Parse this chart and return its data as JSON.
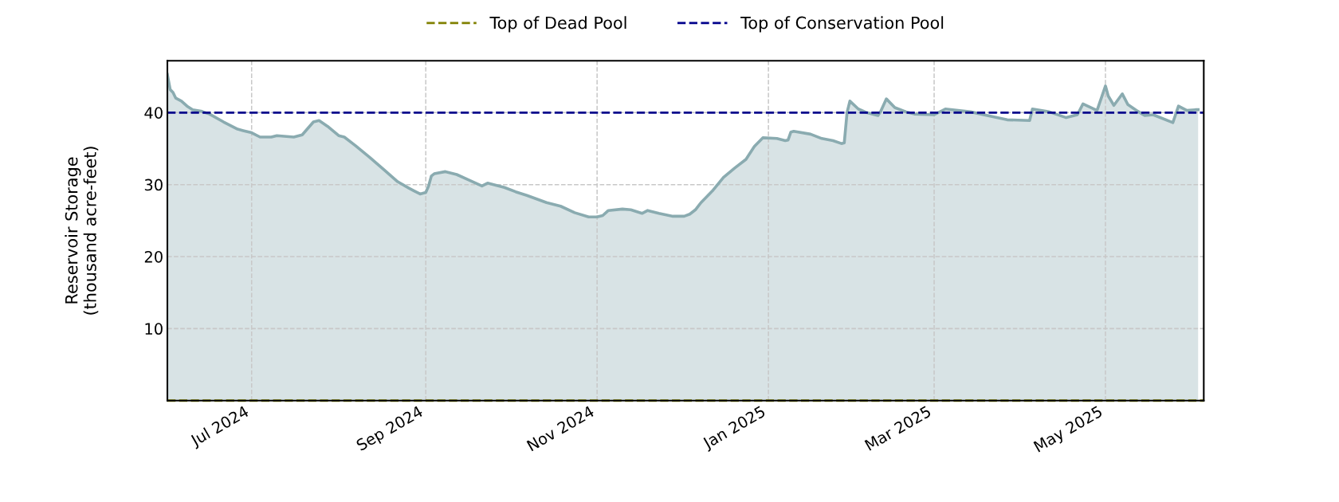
{
  "chart_data": {
    "type": "area",
    "ylabel": "Reservoir Storage\n(thousand acre-feet)",
    "x": [
      "2024-06-01",
      "2024-06-02",
      "2024-06-03",
      "2024-06-04",
      "2024-06-06",
      "2024-06-08",
      "2024-06-10",
      "2024-06-13",
      "2024-06-16",
      "2024-06-21",
      "2024-06-26",
      "2024-06-28",
      "2024-07-01",
      "2024-07-04",
      "2024-07-08",
      "2024-07-10",
      "2024-07-16",
      "2024-07-19",
      "2024-07-23",
      "2024-07-25",
      "2024-07-28",
      "2024-08-01",
      "2024-08-03",
      "2024-08-07",
      "2024-08-12",
      "2024-08-17",
      "2024-08-22",
      "2024-08-26",
      "2024-08-28",
      "2024-08-30",
      "2024-09-01",
      "2024-09-02",
      "2024-09-03",
      "2024-09-04",
      "2024-09-08",
      "2024-09-12",
      "2024-09-16",
      "2024-09-21",
      "2024-09-23",
      "2024-09-29",
      "2024-10-03",
      "2024-10-07",
      "2024-10-14",
      "2024-10-19",
      "2024-10-24",
      "2024-10-29",
      "2024-11-01",
      "2024-11-03",
      "2024-11-05",
      "2024-11-10",
      "2024-11-13",
      "2024-11-17",
      "2024-11-19",
      "2024-11-23",
      "2024-11-28",
      "2024-12-02",
      "2024-12-04",
      "2024-12-06",
      "2024-12-08",
      "2024-12-12",
      "2024-12-16",
      "2024-12-20",
      "2024-12-24",
      "2024-12-27",
      "2024-12-30",
      "2025-01-04",
      "2025-01-07",
      "2025-01-08",
      "2025-01-09",
      "2025-01-10",
      "2025-01-16",
      "2025-01-20",
      "2025-01-24",
      "2025-01-27",
      "2025-01-28",
      "2025-01-29",
      "2025-01-30",
      "2025-02-02",
      "2025-02-05",
      "2025-02-09",
      "2025-02-10",
      "2025-02-12",
      "2025-02-15",
      "2025-02-19",
      "2025-02-22",
      "2025-03-01",
      "2025-03-05",
      "2025-03-14",
      "2025-03-21",
      "2025-03-27",
      "2025-04-04",
      "2025-04-05",
      "2025-04-11",
      "2025-04-17",
      "2025-04-21",
      "2025-04-23",
      "2025-04-28",
      "2025-05-01",
      "2025-05-02",
      "2025-05-04",
      "2025-05-07",
      "2025-05-09",
      "2025-05-12",
      "2025-05-15",
      "2025-05-18",
      "2025-05-25",
      "2025-05-27",
      "2025-05-30",
      "2025-06-02",
      "2025-06-03"
    ],
    "series": [
      {
        "color": "#8aabb0",
        "values": [
          45.3,
          43.2,
          42.8,
          42.0,
          41.6,
          40.9,
          40.4,
          40.2,
          39.8,
          38.7,
          37.7,
          37.5,
          37.2,
          36.6,
          36.6,
          36.8,
          36.6,
          36.9,
          38.7,
          38.9,
          38.1,
          36.8,
          36.6,
          35.4,
          33.8,
          32.1,
          30.4,
          29.5,
          29.1,
          28.7,
          28.9,
          29.8,
          31.2,
          31.5,
          31.8,
          31.4,
          30.7,
          29.8,
          30.2,
          29.6,
          29.0,
          28.5,
          27.5,
          27.0,
          26.1,
          25.5,
          25.5,
          25.7,
          26.4,
          26.6,
          26.5,
          26.0,
          26.4,
          26.0,
          25.6,
          25.6,
          25.9,
          26.5,
          27.5,
          29.1,
          31.0,
          32.3,
          33.5,
          35.3,
          36.5,
          36.4,
          36.1,
          36.2,
          37.3,
          37.4,
          37.0,
          36.4,
          36.1,
          35.7,
          35.8,
          40.0,
          41.6,
          40.5,
          40.0,
          39.6,
          40.2,
          41.9,
          40.7,
          40.1,
          39.8,
          39.7,
          40.5,
          40.1,
          39.5,
          39.0,
          38.9,
          40.5,
          40.1,
          39.3,
          39.7,
          41.2,
          40.3,
          43.7,
          42.3,
          41.0,
          42.6,
          41.1,
          40.3,
          39.6,
          39.7,
          38.6,
          40.9,
          40.3,
          40.4,
          40.4
        ]
      }
    ],
    "ref_lines": [
      {
        "axis": "y",
        "value": 0,
        "label": "Top of Dead Pool",
        "color": "#808000",
        "line_style": "dashed"
      },
      {
        "axis": "y",
        "value": 40,
        "label": "Top of Conservation Pool",
        "color": "#00008b",
        "line_style": "dashed"
      }
    ],
    "xlim": [
      "2024-06-01",
      "2025-06-05"
    ],
    "xticks": [
      {
        "value": "2024-07-01",
        "label": "Jul 2024"
      },
      {
        "value": "2024-09-01",
        "label": "Sep 2024"
      },
      {
        "value": "2024-11-01",
        "label": "Nov 2024"
      },
      {
        "value": "2025-01-01",
        "label": "Jan 2025"
      },
      {
        "value": "2025-03-01",
        "label": "Mar 2025"
      },
      {
        "value": "2025-05-01",
        "label": "May 2025"
      }
    ],
    "ylim": [
      0,
      47.2
    ],
    "yticks": [
      10,
      20,
      30,
      40
    ],
    "grid": true,
    "legend": "top"
  }
}
